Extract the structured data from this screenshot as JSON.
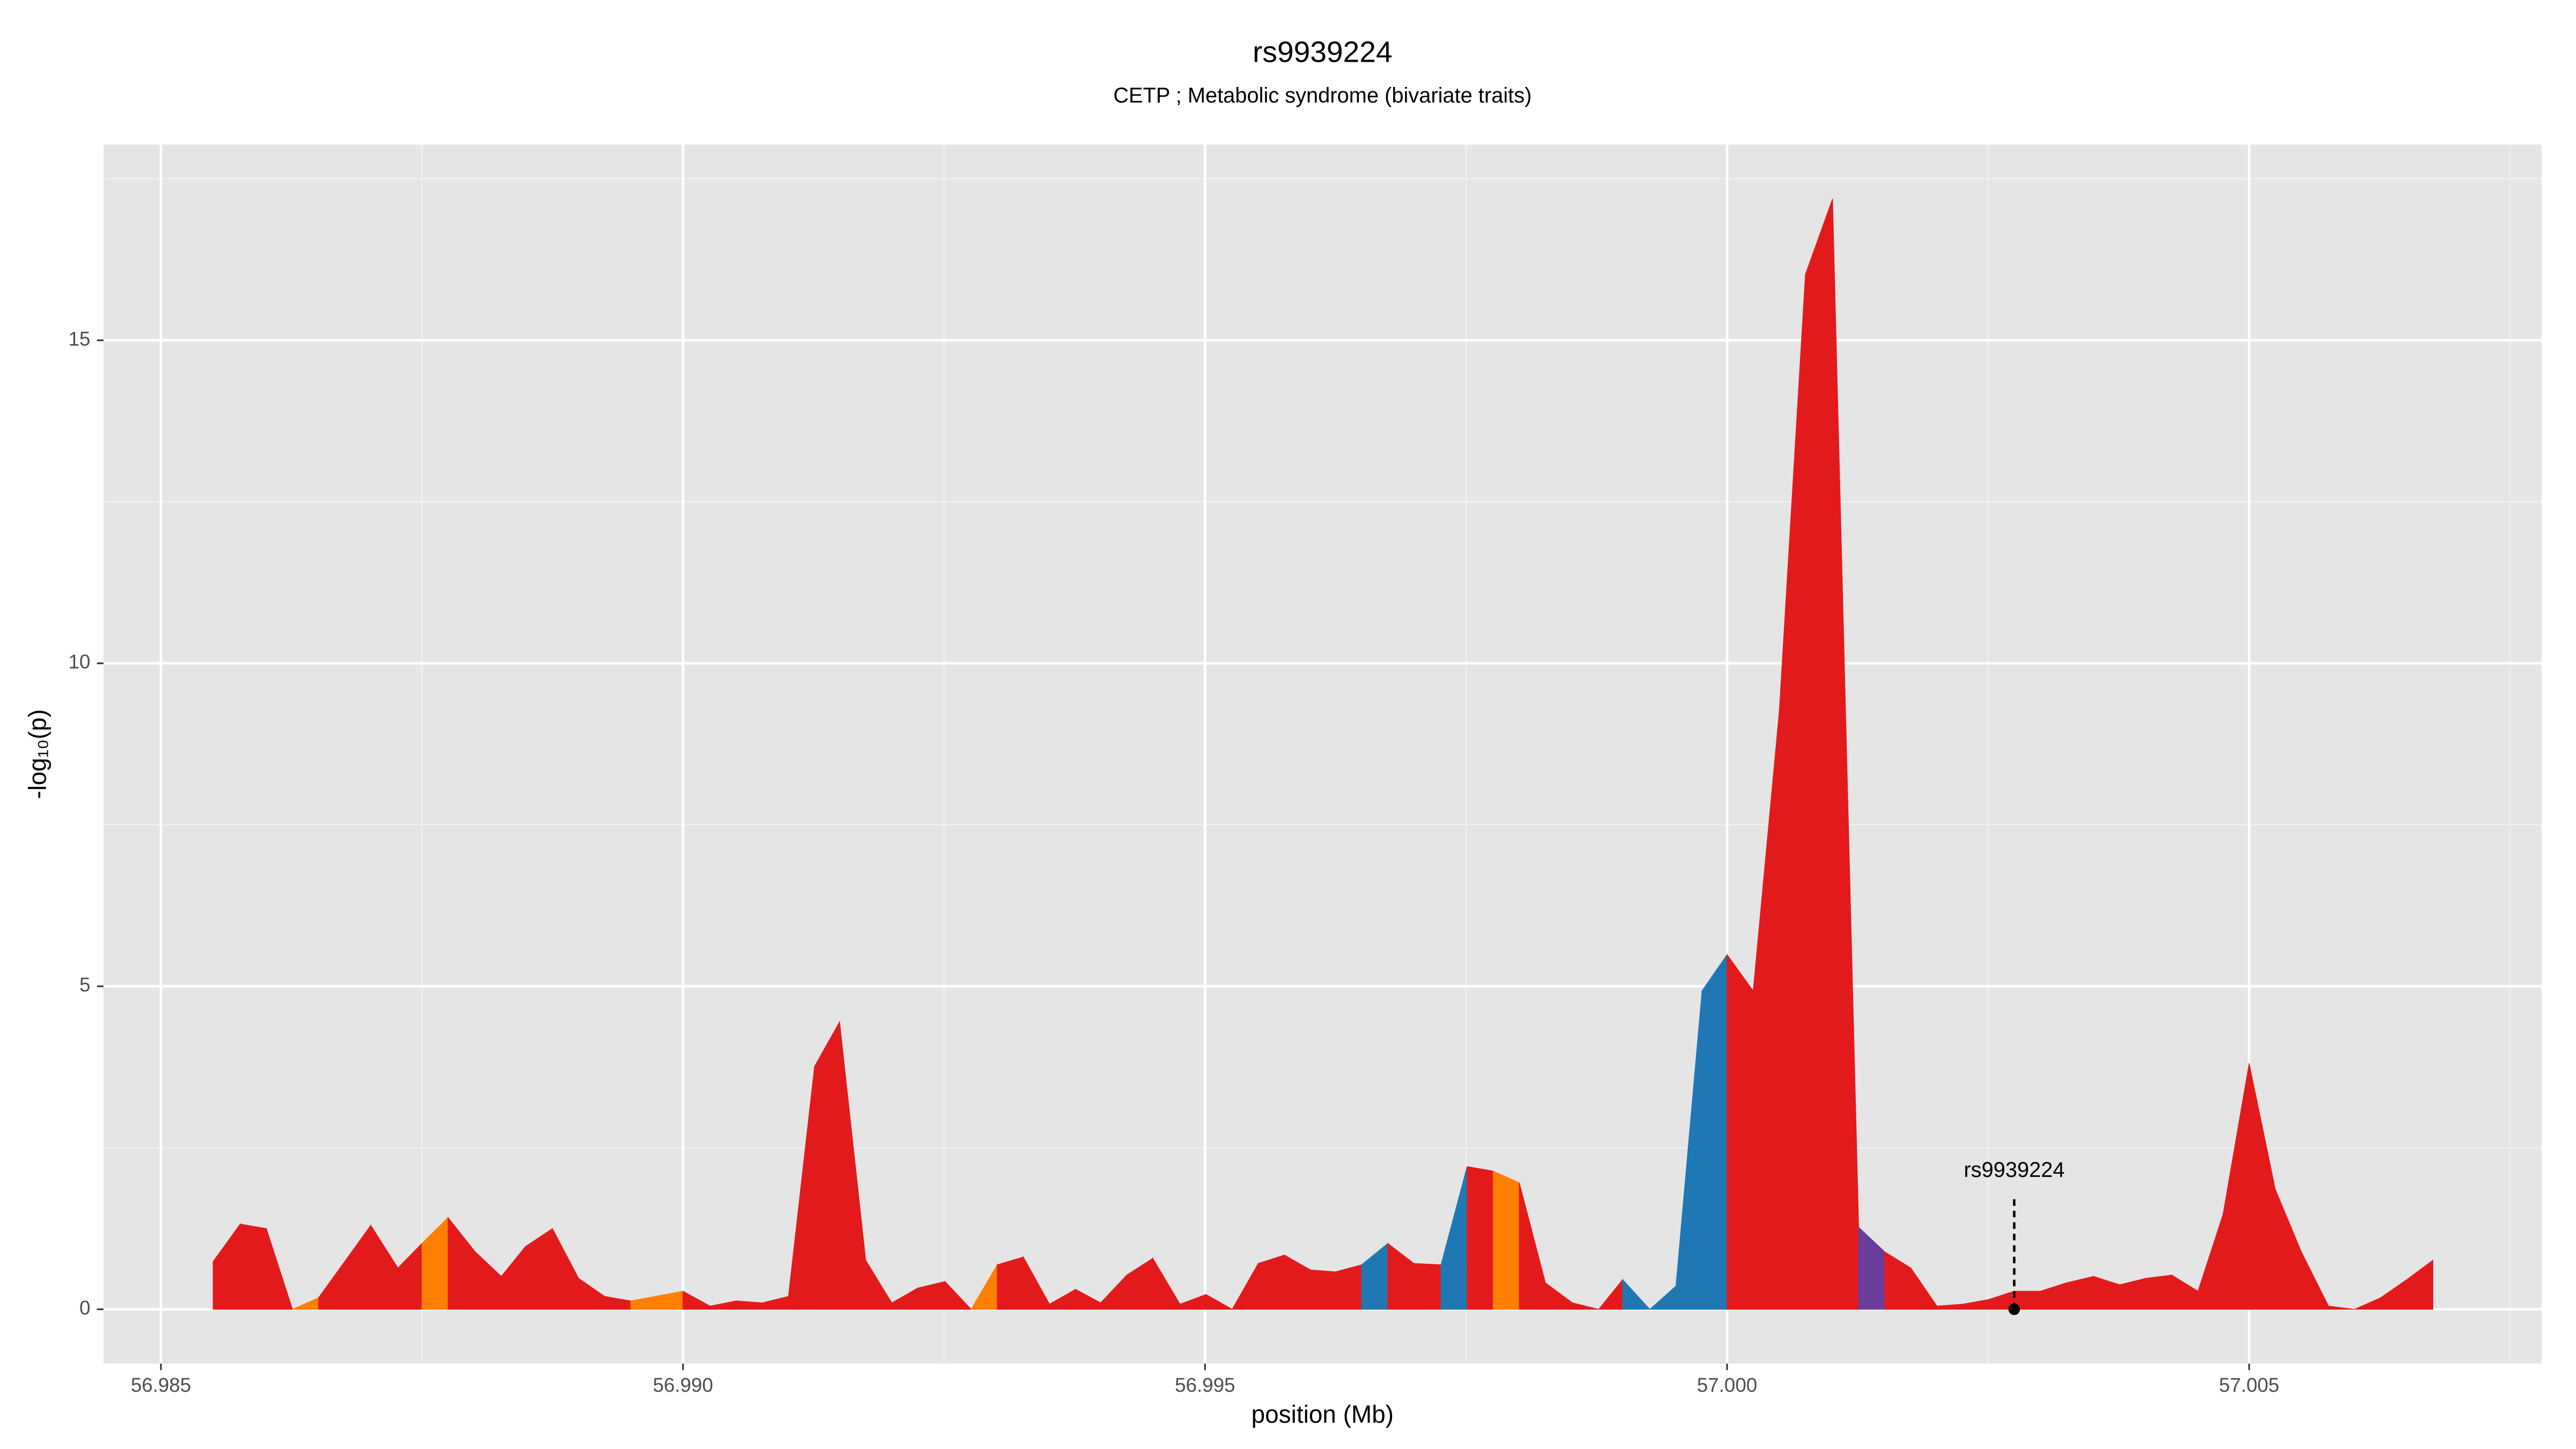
{
  "chart_data": {
    "type": "area",
    "title": "rs9939224",
    "subtitle": "CETP ; Metabolic syndrome (bivariate traits)",
    "xlabel": "position (Mb)",
    "ylabel": "-log₁₀(p)",
    "x": [
      56.9855,
      56.98576,
      56.98601,
      56.98626,
      56.98651,
      56.98701,
      56.98727,
      56.9875,
      56.98775,
      56.98801,
      56.98826,
      56.98849,
      56.98875,
      56.989,
      56.98925,
      56.9895,
      56.99,
      56.99026,
      56.99051,
      56.99076,
      56.99101,
      56.99126,
      56.9915,
      56.99175,
      56.992,
      56.99225,
      56.99251,
      56.99276,
      56.99301,
      56.99326,
      56.99351,
      56.99376,
      56.994,
      56.99425,
      56.9945,
      56.99476,
      56.99501,
      56.99526,
      56.99551,
      56.99576,
      56.99601,
      56.99625,
      56.9965,
      56.99675,
      56.997,
      56.99726,
      56.99751,
      56.99776,
      56.99801,
      56.99826,
      56.99852,
      56.99877,
      56.999,
      56.99926,
      56.99951,
      56.99976,
      57.0,
      57.00025,
      57.0005,
      57.00075,
      57.00101,
      57.00126,
      57.00151,
      57.00176,
      57.00201,
      57.00226,
      57.0025,
      57.00275,
      57.003,
      57.00325,
      57.00351,
      57.00376,
      57.00401,
      57.00426,
      57.00451,
      57.00475,
      57.005,
      57.00525,
      57.0055,
      57.00576,
      57.00601,
      57.00626,
      57.00651,
      57.00676
    ],
    "values": [
      0.74,
      1.32,
      1.25,
      0,
      0.18,
      1.3,
      0.64,
      1.02,
      1.42,
      0.89,
      0.51,
      0.97,
      1.25,
      0.48,
      0.2,
      0.13,
      0.28,
      0.05,
      0.13,
      0.1,
      0.2,
      3.76,
      4.45,
      0.76,
      0.1,
      0.33,
      0.43,
      0,
      0.69,
      0.81,
      0.08,
      0.31,
      0.1,
      0.53,
      0.79,
      0.08,
      0.23,
      0,
      0.71,
      0.84,
      0.61,
      0.58,
      0.69,
      1.02,
      0.71,
      0.69,
      2.21,
      2.14,
      1.96,
      0.41,
      0.1,
      0,
      0.46,
      0,
      0.36,
      4.93,
      5.49,
      4.93,
      9.26,
      16.02,
      17.19,
      1.27,
      0.89,
      0.64,
      0.05,
      0.08,
      0.15,
      0.28,
      0.28,
      0.41,
      0.51,
      0.38,
      0.48,
      0.53,
      0.28,
      1.47,
      3.81,
      1.86,
      0.89,
      0.05,
      0,
      0.18,
      0.46,
      0.76
    ],
    "colors": [
      "#e31a1c",
      "#e31a1c",
      "#e31a1c",
      "#ff7f00",
      "#e31a1c",
      "#e31a1c",
      "#e31a1c",
      "#ff7f00",
      "#e31a1c",
      "#e31a1c",
      "#e31a1c",
      "#e31a1c",
      "#e31a1c",
      "#e31a1c",
      "#e31a1c",
      "#ff7f00",
      "#e31a1c",
      "#e31a1c",
      "#e31a1c",
      "#e31a1c",
      "#e31a1c",
      "#e31a1c",
      "#e31a1c",
      "#e31a1c",
      "#e31a1c",
      "#e31a1c",
      "#e31a1c",
      "#ff7f00",
      "#e31a1c",
      "#e31a1c",
      "#e31a1c",
      "#e31a1c",
      "#e31a1c",
      "#e31a1c",
      "#e31a1c",
      "#e31a1c",
      "#e31a1c",
      "#e31a1c",
      "#e31a1c",
      "#e31a1c",
      "#e31a1c",
      "#e31a1c",
      "#1f78b4",
      "#e31a1c",
      "#e31a1c",
      "#1f78b4",
      "#e31a1c",
      "#ff7f00",
      "#e31a1c",
      "#e31a1c",
      "#e31a1c",
      "#e31a1c",
      "#1f78b4",
      "#1f78b4",
      "#1f78b4",
      "#1f78b4",
      "#e31a1c",
      "#e31a1c",
      "#e31a1c",
      "#e31a1c",
      "#e31a1c",
      "#6a3d9a",
      "#e31a1c",
      "#e31a1c",
      "#e31a1c",
      "#e31a1c",
      "#e31a1c",
      "#e31a1c",
      "#e31a1c",
      "#e31a1c",
      "#e31a1c",
      "#e31a1c",
      "#e31a1c",
      "#e31a1c",
      "#e31a1c",
      "#e31a1c",
      "#e31a1c",
      "#e31a1c",
      "#e31a1c",
      "#e31a1c",
      "#e31a1c",
      "#e31a1c",
      "#e31a1c",
      "#e31a1c"
    ],
    "annotation": {
      "text": "rs9939224",
      "x": 57.00275,
      "y": 0
    },
    "xlim": [
      56.98445,
      57.0078
    ],
    "ylim": [
      -0.84,
      18.03
    ],
    "xticks": [
      56.985,
      {
        "value": 56.99,
        "label": "56.990"
      },
      56.995,
      {
        "value": 57,
        "label": "57.000"
      },
      57.005
    ],
    "yticks": [
      0,
      5,
      10,
      15
    ],
    "grid": true
  }
}
